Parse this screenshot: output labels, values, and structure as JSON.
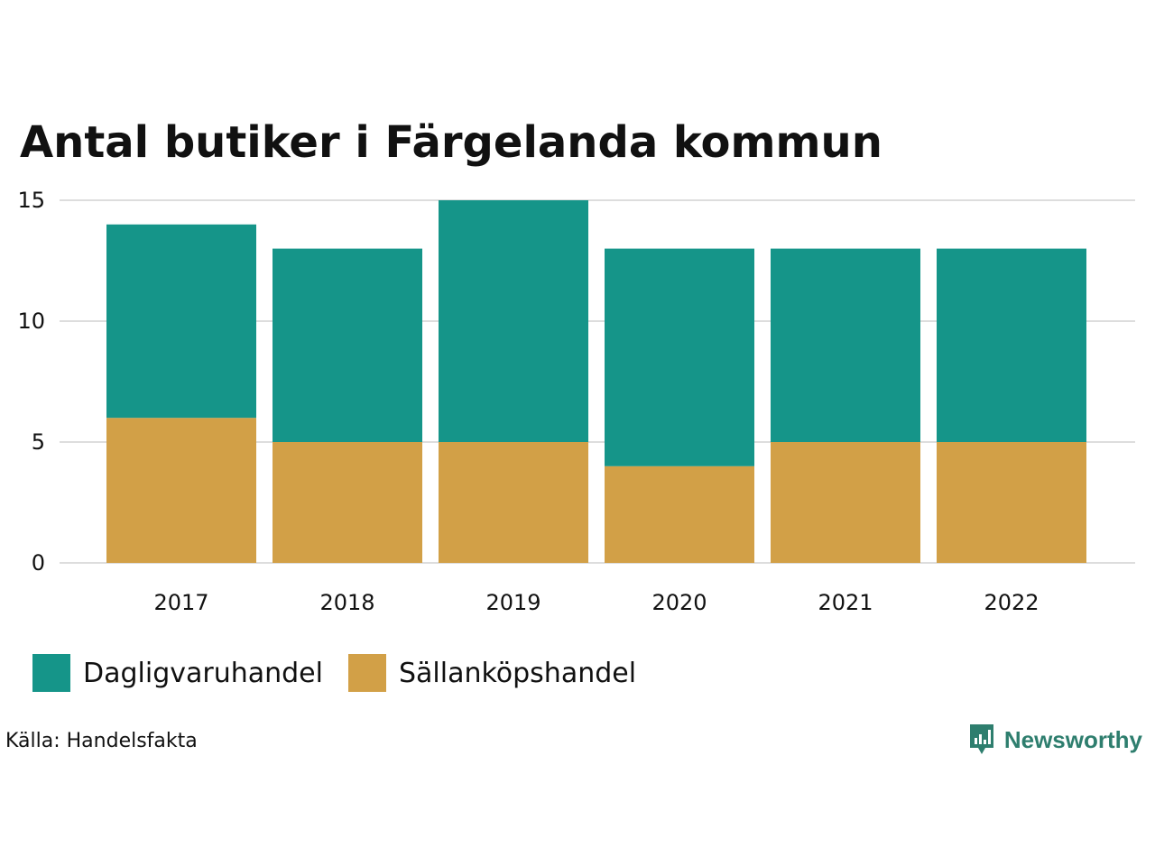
{
  "colors": {
    "daglig": "#159589",
    "sallan": "#d2a047",
    "grid": "#dddddd",
    "text": "#111111",
    "brand": "#2e7e6e"
  },
  "source_text": "Källa: Handelsfakta",
  "brand_name": "Newsworthy",
  "chart_data": {
    "type": "bar",
    "stacked": true,
    "title": "Antal butiker i Färgelanda kommun",
    "xlabel": "",
    "ylabel": "",
    "categories": [
      "2017",
      "2018",
      "2019",
      "2020",
      "2021",
      "2022"
    ],
    "series": [
      {
        "name": "Sällanköpshandel",
        "color": "#d2a047",
        "values": [
          6,
          5,
          5,
          4,
          5,
          5
        ]
      },
      {
        "name": "Dagligvaruhandel",
        "color": "#159589",
        "values": [
          8,
          8,
          10,
          9,
          8,
          8
        ]
      }
    ],
    "legend": [
      {
        "name": "Dagligvaruhandel",
        "color": "#159589"
      },
      {
        "name": "Sällanköpshandel",
        "color": "#d2a047"
      }
    ],
    "ylim": [
      0,
      15
    ],
    "yticks": [
      "0",
      "5",
      "10",
      "15"
    ],
    "grid": true,
    "legend_position": "bottom-left"
  }
}
